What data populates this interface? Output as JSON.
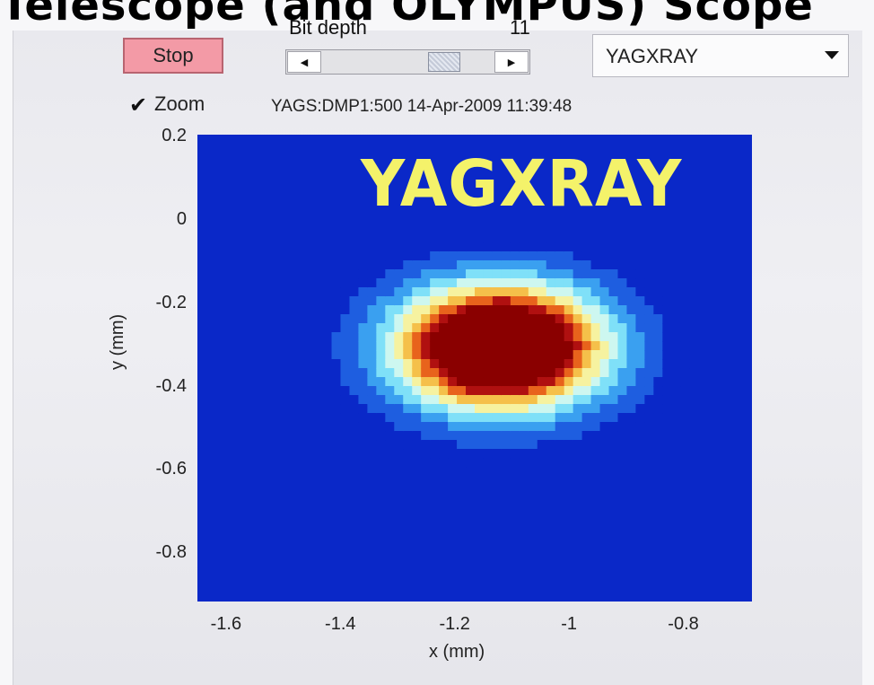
{
  "page": {
    "heading": "Telescope (and OLYMPUS) Scope"
  },
  "controls": {
    "stop_label": "Stop",
    "bit_depth_label": "Bit depth",
    "bit_depth_value": "11",
    "slider_left_arrow": "◀",
    "slider_right_arrow": "▶",
    "slider_position": 0.75,
    "camera_select": "YAGXRAY",
    "zoom_checked": true,
    "zoom_check_glyph": "✔",
    "zoom_label": "Zoom",
    "info": "YAGS:DMP1:500 14-Apr-2009 11:39:48"
  },
  "chart_data": {
    "type": "heatmap",
    "title": "",
    "overlay_text": "YAGXRAY",
    "xlabel": "x  (mm)",
    "ylabel": "y  (mm)",
    "xlim": [
      -1.65,
      -0.68
    ],
    "ylim": [
      -0.92,
      0.2
    ],
    "x_ticks": [
      {
        "value": -1.6,
        "label": "-1.6"
      },
      {
        "value": -1.4,
        "label": "-1.4"
      },
      {
        "value": -1.2,
        "label": "-1.2"
      },
      {
        "value": -1.0,
        "label": "-1"
      },
      {
        "value": -0.8,
        "label": "-0.8"
      }
    ],
    "y_ticks": [
      {
        "value": 0.2,
        "label": "0.2"
      },
      {
        "value": 0.0,
        "label": "0"
      },
      {
        "value": -0.2,
        "label": "-0.2"
      },
      {
        "value": -0.4,
        "label": "-0.4"
      },
      {
        "value": -0.6,
        "label": "-0.6"
      },
      {
        "value": -0.8,
        "label": "-0.8"
      }
    ],
    "beam_spot": {
      "center_x": -1.12,
      "center_y": -0.31,
      "sigma_x": 0.115,
      "sigma_y": 0.095
    },
    "colormap": [
      "#0a28c8",
      "#1e5ee0",
      "#3aa0f0",
      "#7fe0f8",
      "#cdf7f0",
      "#f6f2a0",
      "#f5c04a",
      "#e8631c",
      "#b01010",
      "#8a0000"
    ]
  }
}
